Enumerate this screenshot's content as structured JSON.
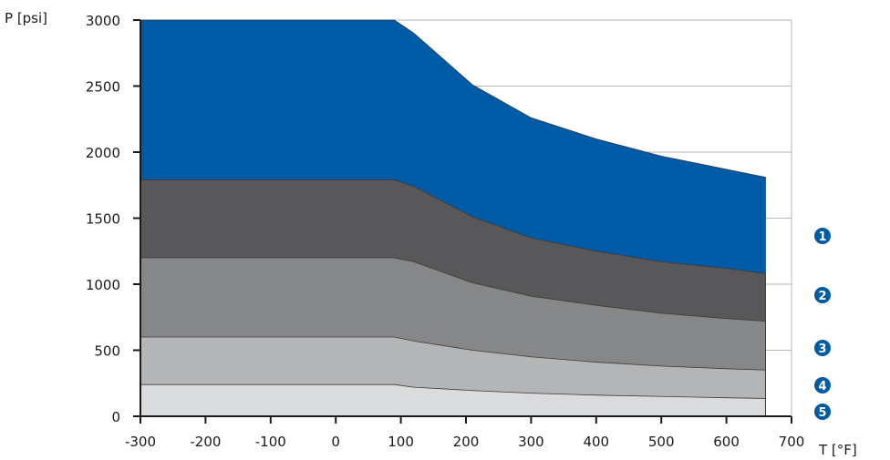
{
  "chart_data": {
    "type": "area",
    "title": "",
    "xlabel": "T [°F]",
    "ylabel": "P [psi]",
    "xlim": [
      -300,
      700
    ],
    "ylim": [
      0,
      3000
    ],
    "x_ticks": [
      -300,
      -200,
      -100,
      0,
      100,
      200,
      300,
      400,
      500,
      600,
      700
    ],
    "y_ticks": [
      0,
      500,
      1000,
      1500,
      2000,
      2500,
      3000
    ],
    "grid": "horizontal",
    "legend": "right",
    "series": [
      {
        "label": "1",
        "color": "#005ba6",
        "x": [
          -300,
          90,
          120,
          210,
          300,
          400,
          500,
          600,
          660
        ],
        "values": [
          3000,
          3000,
          2900,
          2510,
          2260,
          2100,
          1970,
          1870,
          1810
        ]
      },
      {
        "label": "2",
        "color": "#58585a",
        "x": [
          -300,
          90,
          120,
          210,
          300,
          400,
          500,
          600,
          660
        ],
        "values": [
          1790,
          1790,
          1740,
          1510,
          1350,
          1250,
          1170,
          1120,
          1080
        ]
      },
      {
        "label": "3",
        "color": "#868789",
        "x": [
          -300,
          90,
          120,
          210,
          300,
          400,
          500,
          600,
          660
        ],
        "values": [
          1200,
          1200,
          1170,
          1010,
          910,
          840,
          780,
          740,
          720
        ]
      },
      {
        "label": "4",
        "color": "#b4b5b7",
        "x": [
          -300,
          90,
          120,
          210,
          300,
          400,
          500,
          600,
          660
        ],
        "values": [
          600,
          600,
          570,
          500,
          450,
          410,
          380,
          360,
          350
        ]
      },
      {
        "label": "5",
        "color": "#dadbdc",
        "x": [
          -300,
          90,
          120,
          210,
          300,
          400,
          500,
          600,
          660
        ],
        "values": [
          240,
          240,
          220,
          195,
          175,
          160,
          150,
          140,
          135
        ]
      }
    ],
    "badge_color": "#005ba6",
    "gridline_color": "#b4b5b7",
    "axis_color": "#1a1a1a"
  }
}
